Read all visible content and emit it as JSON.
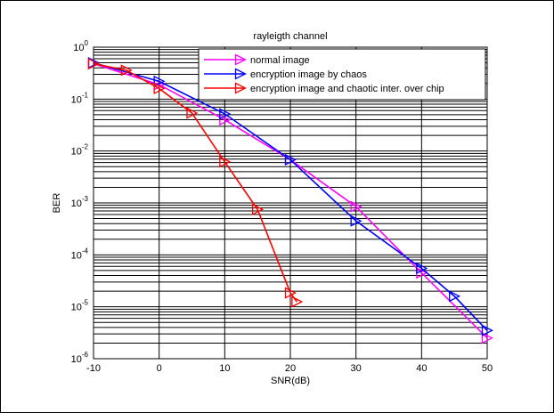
{
  "chart_data": {
    "type": "line",
    "title": "rayleigth channel",
    "xlabel": "SNR(dB)",
    "ylabel": "BER",
    "xlim": [
      -10,
      50
    ],
    "ylim": [
      1e-06,
      1
    ],
    "yscale": "log",
    "grid": true,
    "legend_position": "top-right",
    "xticks": [
      "-10",
      "0",
      "10",
      "20",
      "30",
      "40",
      "50"
    ],
    "ytick_exponents": [
      "0",
      "-1",
      "-2",
      "-3",
      "-4",
      "-5",
      "-6"
    ],
    "ytick_base": "10",
    "series": [
      {
        "name": "normal image",
        "color": "#ff00ff",
        "marker": "triangle-right",
        "x": [
          -10,
          0,
          10,
          20,
          30,
          40,
          50
        ],
        "y": [
          0.48,
          0.19,
          0.04,
          0.0068,
          0.00085,
          4.5e-05,
          2.5e-06
        ]
      },
      {
        "name": "encryption image by chaos",
        "color": "#0000ff",
        "marker": "triangle-right",
        "x": [
          -10,
          0,
          10,
          20,
          30,
          40,
          45,
          50
        ],
        "y": [
          0.5,
          0.22,
          0.052,
          0.0068,
          0.00045,
          5.5e-05,
          1.6e-05,
          3.5e-06
        ]
      },
      {
        "name": "encryption image and chaotic inter. over chip",
        "color": "#ff0000",
        "marker": "triangle-right",
        "x": [
          -10,
          -5,
          0,
          5,
          10,
          15,
          20,
          21
        ],
        "y": [
          0.48,
          0.36,
          0.16,
          0.054,
          0.0062,
          0.00075,
          1.85e-05,
          1.25e-05
        ]
      }
    ]
  }
}
